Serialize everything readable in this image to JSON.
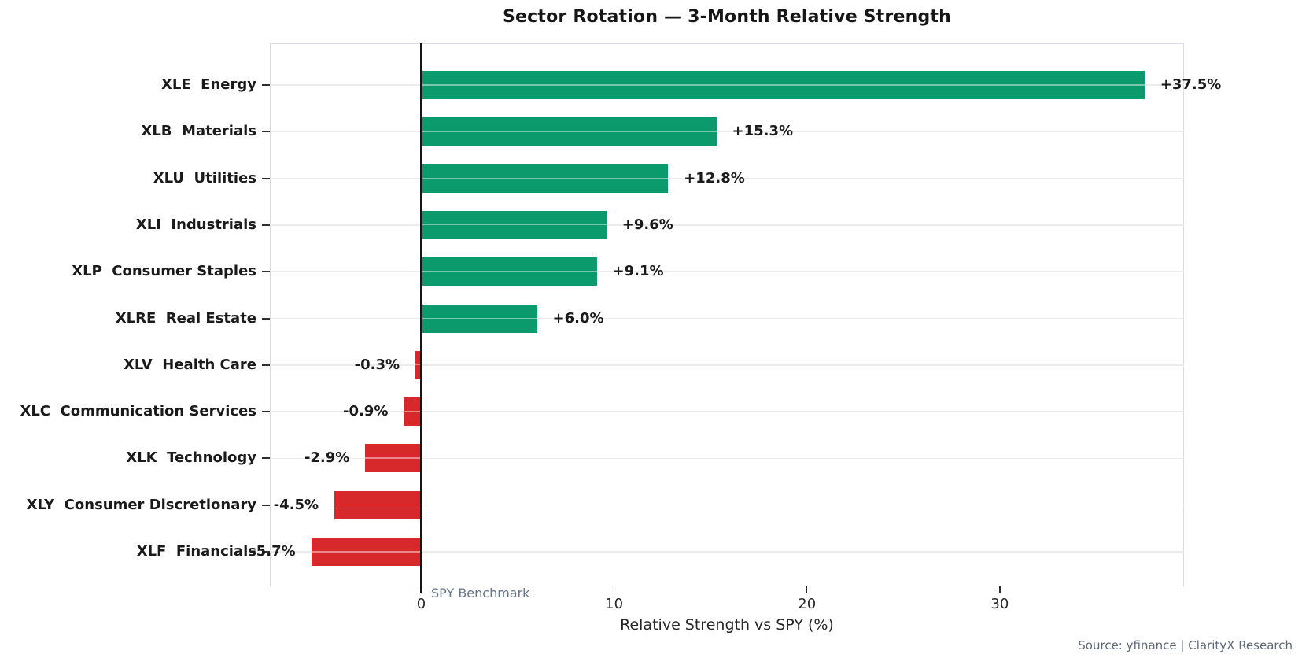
{
  "title": "Sector Rotation — 3-Month Relative Strength",
  "chart_data": {
    "type": "bar",
    "orientation": "horizontal",
    "title": "Sector Rotation — 3-Month Relative Strength",
    "categories": [
      "XLE  Energy",
      "XLB  Materials",
      "XLU  Utilities",
      "XLI  Industrials",
      "XLP  Consumer Staples",
      "XLRE  Real Estate",
      "XLV  Health Care",
      "XLC  Communication Services",
      "XLK  Technology",
      "XLY  Consumer Discretionary",
      "XLF  Financials"
    ],
    "values": [
      37.5,
      15.3,
      12.8,
      9.6,
      9.1,
      6.0,
      -0.3,
      -0.9,
      -2.9,
      -4.5,
      -5.7
    ],
    "value_labels": [
      "+37.5%",
      "+15.3%",
      "+12.8%",
      "+9.6%",
      "+9.1%",
      "+6.0%",
      "-0.3%",
      "-0.9%",
      "-2.9%",
      "-4.5%",
      "-5.7%"
    ],
    "xlabel": "Relative Strength vs SPY (%)",
    "x_ticks": [
      0,
      10,
      20,
      30
    ],
    "xlim": [
      -7.85,
      39.55
    ],
    "grid": "horizontal category gridlines only",
    "legend": "none",
    "benchmark": {
      "x": 0,
      "label": "SPY Benchmark"
    },
    "colors": {
      "positive": "#0a9a6b",
      "negative": "#d7282b",
      "benchmark_line": "#151515",
      "benchmark_label": "#64748b",
      "gridline": "#ebebee",
      "text": "#1a1a1a"
    }
  },
  "footer": {
    "source": "Source: yfinance | ClarityX Research"
  }
}
